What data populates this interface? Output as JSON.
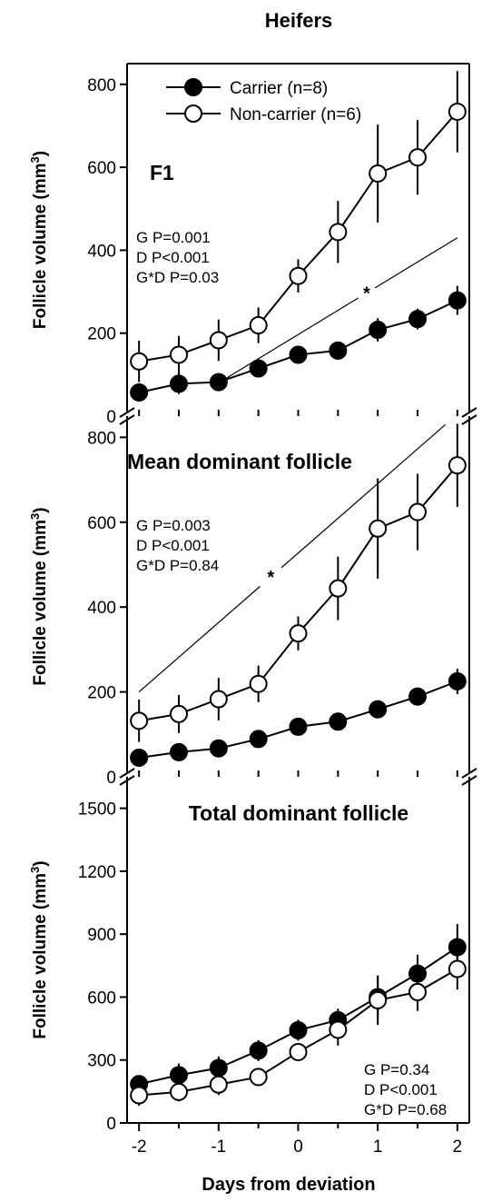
{
  "figure_title": "Heifers",
  "x_axis_label": "Days from deviation",
  "legend": {
    "carrier": "Carrier (n=8)",
    "noncarrier": "Non-carrier (n=6)"
  },
  "colors": {
    "carrier": "#000000",
    "noncarrier": "#ffffff",
    "stroke": "#000000"
  },
  "chart_data": [
    {
      "type": "line",
      "title": "F1",
      "xlabel": "",
      "ylabel": "Follicle volume (mm3)",
      "x": [
        -2,
        -1.5,
        -1,
        -0.5,
        0,
        0.5,
        1,
        1.5,
        2
      ],
      "xticks": [
        "-2",
        "-1",
        "0",
        "1",
        "2"
      ],
      "ylim": [
        0,
        850
      ],
      "yticks": [
        0,
        200,
        400,
        600,
        800
      ],
      "series": [
        {
          "name": "Carrier (n=8)",
          "values": [
            57,
            78,
            82,
            115,
            148,
            158,
            208,
            234,
            279
          ],
          "errors": [
            22,
            25,
            20,
            18,
            18,
            18,
            28,
            25,
            35
          ]
        },
        {
          "name": "Non-carrier (n=6)",
          "values": [
            132,
            148,
            183,
            219,
            338,
            444,
            585,
            624,
            734
          ],
          "errors": [
            50,
            45,
            50,
            43,
            40,
            75,
            118,
            90,
            98
          ]
        }
      ],
      "stats": [
        "G P=0.001",
        "D P<0.001",
        "G*D P=0.03"
      ],
      "significance_marker": "*",
      "significance_line": {
        "from": [
          -1,
          80
        ],
        "to": [
          2,
          430
        ]
      }
    },
    {
      "type": "line",
      "title": "Mean dominant follicle",
      "xlabel": "",
      "ylabel": "Follicle volume (mm3)",
      "x": [
        -2,
        -1.5,
        -1,
        -0.5,
        0,
        0.5,
        1,
        1.5,
        2
      ],
      "xticks": [
        "-2",
        "-1",
        "0",
        "1",
        "2"
      ],
      "ylim": [
        0,
        850
      ],
      "yticks": [
        0,
        200,
        400,
        600,
        800
      ],
      "series": [
        {
          "name": "Carrier (n=8)",
          "values": [
            45,
            58,
            67,
            89,
            118,
            130,
            159,
            189,
            225
          ],
          "errors": [
            12,
            12,
            12,
            14,
            15,
            16,
            18,
            20,
            30
          ]
        },
        {
          "name": "Non-carrier (n=6)",
          "values": [
            132,
            148,
            183,
            219,
            338,
            444,
            585,
            624,
            734
          ],
          "errors": [
            50,
            45,
            50,
            43,
            40,
            75,
            118,
            90,
            98
          ]
        }
      ],
      "stats": [
        "G P=0.003",
        "D P<0.001",
        "G*D P=0.84"
      ],
      "significance_marker": "*",
      "significance_line": {
        "from": [
          -2,
          200
        ],
        "to": [
          1.85,
          830
        ]
      }
    },
    {
      "type": "line",
      "title": "Total dominant follicle",
      "xlabel": "Days from deviation",
      "ylabel": "Follicle volume (mm3)",
      "x": [
        -2,
        -1.5,
        -1,
        -0.5,
        0,
        0.5,
        1,
        1.5,
        2
      ],
      "xticks": [
        "-2",
        "-1",
        "0",
        "1",
        "2"
      ],
      "ylim": [
        0,
        1650
      ],
      "yticks": [
        0,
        300,
        600,
        900,
        1200,
        1500
      ],
      "series": [
        {
          "name": "Carrier (n=8)",
          "values": [
            185,
            228,
            262,
            345,
            442,
            490,
            600,
            712,
            838
          ],
          "errors": [
            40,
            55,
            55,
            50,
            50,
            55,
            100,
            90,
            110
          ]
        },
        {
          "name": "Non-carrier (n=6)",
          "values": [
            132,
            148,
            183,
            219,
            338,
            444,
            585,
            624,
            734
          ],
          "errors": [
            50,
            45,
            50,
            43,
            40,
            75,
            118,
            90,
            98
          ]
        }
      ],
      "stats": [
        "G P=0.34",
        "D P<0.001",
        "G*D P=0.68"
      ]
    }
  ]
}
